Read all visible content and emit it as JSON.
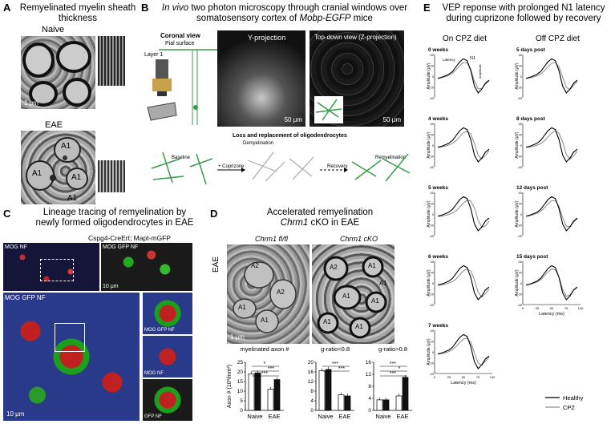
{
  "panelA": {
    "letter": "A",
    "title": "Remyelinated myelin sheath thickness",
    "naive_label": "Naive",
    "eae_label": "EAE",
    "scale": "1 μm",
    "axon_labels": [
      "A1",
      "A1",
      "A1",
      "A1"
    ]
  },
  "panelB": {
    "letter": "B",
    "title_pre": "In vivo",
    "title_mid": " two photon microscopy through cranial windows over somatosensory cortex of ",
    "title_mouse": "Mobp-EGFP",
    "title_post": " mice",
    "coronal": "Coronal view",
    "pial": "Pial surface",
    "layer": "Layer 1",
    "yproj": "Y-projection",
    "topdown": "Top-down view (Z-projection)",
    "scale1": "50 μm",
    "scale2": "50 μm",
    "loss_title": "Loss and replacement of oligodendrocytes",
    "baseline": "Baseline",
    "cuprizone": "+ Cuprizone",
    "demyelination": "Demyelination",
    "recovery": "Recovery",
    "remyelination": "Remyelination"
  },
  "panelC": {
    "letter": "C",
    "title_line1": "Lineage tracing of remyelination by",
    "title_line2": "newly formed oligodendrocytes in EAE",
    "genotype": "Cspg4-CreErt; Mapt-mGFP",
    "label_mognf": "MOG NF",
    "label_moggfpnf": "MOG GFP NF",
    "label_moggfpnf2": "MOG GFP NF",
    "label_moggfp_right": "MOG GFP NF",
    "label_mognf_right": "MOG NF",
    "label_gfpnf_right": "GFP NF",
    "scale1": "10 μm",
    "scale2": "10 μm"
  },
  "panelD": {
    "letter": "D",
    "title_line1": "Accelerated remyelination",
    "title_gene": "Chrm1",
    "title_line2_post": " cKO in EAE",
    "col1": "Chrm1 fl/fl",
    "col2": "Chrm1 cKO",
    "eae_side": "EAE",
    "scale": "1 μm",
    "axon_labels": [
      "A2",
      "A2",
      "A1",
      "A1",
      "A2",
      "A1",
      "A1",
      "A1",
      "A1",
      "A1",
      "A1"
    ]
  },
  "panelE": {
    "letter": "E",
    "title_line1": "VEP reponse with prolonged N1 latency",
    "title_line2": "during cuprizone followed by recovery",
    "col_on": "On CPZ diet",
    "col_off": "Off CPZ diet",
    "left_labels": [
      "0 weeks",
      "4 weeks",
      "5 weeks",
      "6 weeks",
      "7 weeks"
    ],
    "right_labels": [
      "5 days post",
      "8 days post",
      "12 days post",
      "15 days post"
    ],
    "ylabel": "Amplitude (μV)",
    "xlabel": "Latency (ms)",
    "latency_annot": "Latency",
    "n1": "N1",
    "amplitude_annot": "Amplitude",
    "legend": [
      "Healthy",
      "CPZ"
    ],
    "colors": {
      "healthy": "#000000",
      "cpz": "#8a8a8a"
    }
  },
  "chart_data": [
    {
      "type": "bar",
      "title": "myelinated axon #",
      "ylabel": "Axon # (10³/mm²)",
      "categories": [
        "Naive",
        "EAE"
      ],
      "ylim": [
        0,
        25
      ],
      "yticks": [
        "0",
        "5",
        "10",
        "15",
        "20",
        "25"
      ],
      "series": [
        {
          "name": "Chrm1 fl/fl",
          "values": [
            19,
            11
          ]
        },
        {
          "name": "Chrm1 cKO",
          "values": [
            19.5,
            16
          ]
        }
      ],
      "significance": [
        "*",
        "***",
        "***"
      ]
    },
    {
      "type": "bar",
      "title": "g-ratio<0.8",
      "ylabel": "",
      "categories": [
        "Naive",
        "EAE"
      ],
      "ylim": [
        0,
        20
      ],
      "yticks": [
        "0",
        "4",
        "8",
        "12",
        "16",
        "20"
      ],
      "series": [
        {
          "name": "Chrm1 fl/fl",
          "values": [
            16.5,
            6.5
          ]
        },
        {
          "name": "Chrm1 cKO",
          "values": [
            17,
            6
          ]
        }
      ],
      "significance": [
        "***",
        "***"
      ]
    },
    {
      "type": "bar",
      "title": "g-ratio>0.8",
      "ylabel": "",
      "categories": [
        "Naive",
        "EAE"
      ],
      "ylim": [
        0,
        16
      ],
      "yticks": [
        "0",
        "4",
        "8",
        "12",
        "16"
      ],
      "series": [
        {
          "name": "Chrm1 fl/fl",
          "values": [
            3.5,
            4.8
          ]
        },
        {
          "name": "Chrm1 cKO",
          "values": [
            3.5,
            11
          ]
        }
      ],
      "significance": [
        "***",
        "*",
        "***"
      ]
    }
  ]
}
